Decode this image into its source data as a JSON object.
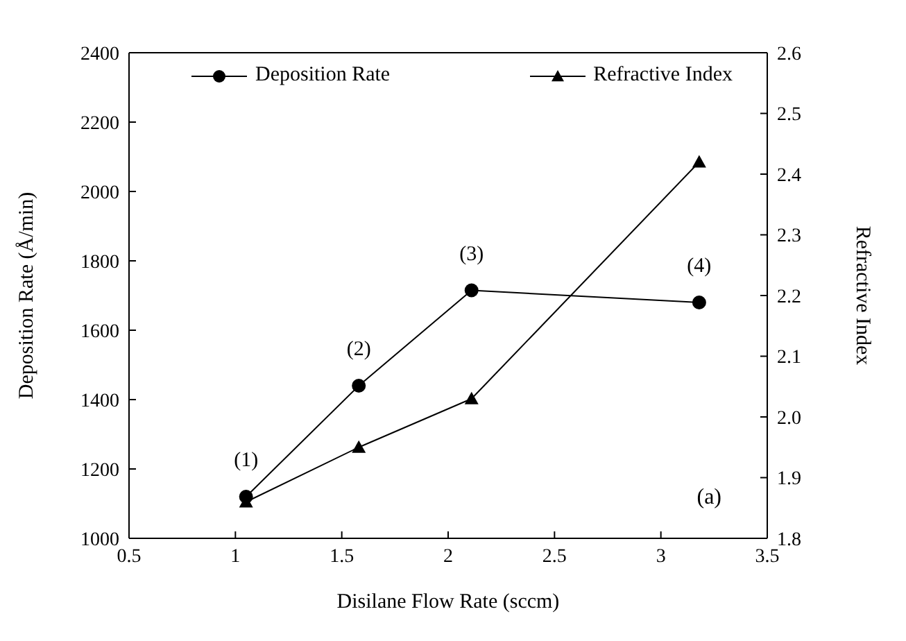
{
  "chart_data": {
    "type": "line",
    "xlabel": "Disilane Flow Rate (sccm)",
    "ylabel": "Deposition Rate (Å/min)",
    "y2label": "Refractive Index",
    "xlim": [
      0.5,
      3.5
    ],
    "xticks": [
      0.5,
      1,
      1.5,
      2,
      2.5,
      3,
      3.5
    ],
    "ylim": [
      1000,
      2400
    ],
    "yticks": [
      1000,
      1200,
      1400,
      1600,
      1800,
      2000,
      2200,
      2400
    ],
    "y2lim": [
      1.8,
      2.6
    ],
    "y2ticks": [
      {
        "value": 1.8,
        "label": "1.8"
      },
      {
        "value": 1.9,
        "label": "1.9"
      },
      {
        "value": 2.0,
        "label": "2.0"
      },
      {
        "value": 2.1,
        "label": "2.1"
      },
      {
        "value": 2.2,
        "label": "2.2"
      },
      {
        "value": 2.3,
        "label": "2.3"
      },
      {
        "value": 2.4,
        "label": "2.4"
      },
      {
        "value": 2.5,
        "label": "2.5"
      },
      {
        "value": 2.6,
        "label": "2.6"
      }
    ],
    "series": [
      {
        "name": "Deposition Rate",
        "color": "#000000",
        "marker": "circle",
        "x": [
          1.05,
          1.58,
          2.11,
          3.18
        ],
        "values": [
          1120,
          1440,
          1715,
          1680
        ]
      },
      {
        "name": "Refractive Index",
        "color": "#000000",
        "marker": "triangle",
        "axis": "y2",
        "x": [
          1.05,
          1.58,
          2.11,
          3.18
        ],
        "values": [
          1.86,
          1.95,
          2.03,
          2.42
        ]
      }
    ],
    "annotations": [
      {
        "text": "(1)",
        "x": 1.05,
        "y": 1120
      },
      {
        "text": "(2)",
        "x": 1.58,
        "y": 1440
      },
      {
        "text": "(3)",
        "x": 2.11,
        "y": 1715
      },
      {
        "text": "(4)",
        "x": 3.18,
        "y": 1680
      },
      "(a)"
    ],
    "legend": "top",
    "line_style": "solid"
  }
}
